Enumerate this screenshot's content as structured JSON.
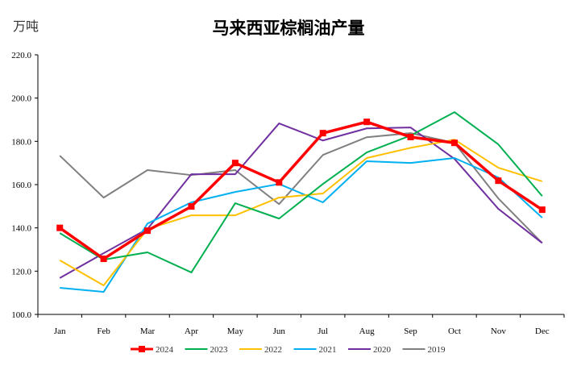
{
  "chart_data": {
    "type": "line",
    "title": "马来西亚棕榈油产量",
    "ylabel": "万吨",
    "xlabel": "",
    "categories": [
      "Jan",
      "Feb",
      "Mar",
      "Apr",
      "May",
      "Jun",
      "Jul",
      "Aug",
      "Sep",
      "Oct",
      "Nov",
      "Dec"
    ],
    "ylim": [
      100,
      220
    ],
    "yticks": [
      "100.0",
      "120.0",
      "140.0",
      "160.0",
      "180.0",
      "200.0",
      "220.0"
    ],
    "grid": false,
    "legend_position": "bottom",
    "series": [
      {
        "name": "2024",
        "color": "#FF0000",
        "marker": "square",
        "values": [
          140.0,
          125.7,
          138.7,
          149.9,
          170.0,
          161.0,
          183.8,
          189.0,
          182.0,
          179.3,
          161.8,
          148.4
        ]
      },
      {
        "name": "2023",
        "color": "#00B050",
        "values": [
          137.6,
          125.3,
          128.7,
          119.4,
          151.4,
          144.3,
          160.3,
          174.9,
          182.7,
          193.5,
          178.6,
          154.7
        ]
      },
      {
        "name": "2022",
        "color": "#FFC000",
        "values": [
          125.0,
          113.4,
          139.5,
          145.8,
          145.8,
          154.0,
          155.9,
          172.3,
          177.0,
          180.8,
          167.8,
          161.5
        ]
      },
      {
        "name": "2021",
        "color": "#00B0F0",
        "values": [
          112.3,
          110.4,
          142.0,
          151.8,
          156.6,
          160.3,
          151.8,
          170.8,
          170.0,
          172.3,
          163.3,
          144.7
        ]
      },
      {
        "name": "2020",
        "color": "#7030A0",
        "values": [
          116.8,
          128.3,
          139.5,
          164.8,
          164.8,
          188.3,
          180.4,
          186.0,
          186.4,
          171.9,
          148.8,
          133.0
        ]
      },
      {
        "name": "2019",
        "color": "#808080",
        "values": [
          173.4,
          154.0,
          166.7,
          164.4,
          166.7,
          151.0,
          173.7,
          181.9,
          183.8,
          179.3,
          153.6,
          133.0
        ]
      }
    ]
  }
}
